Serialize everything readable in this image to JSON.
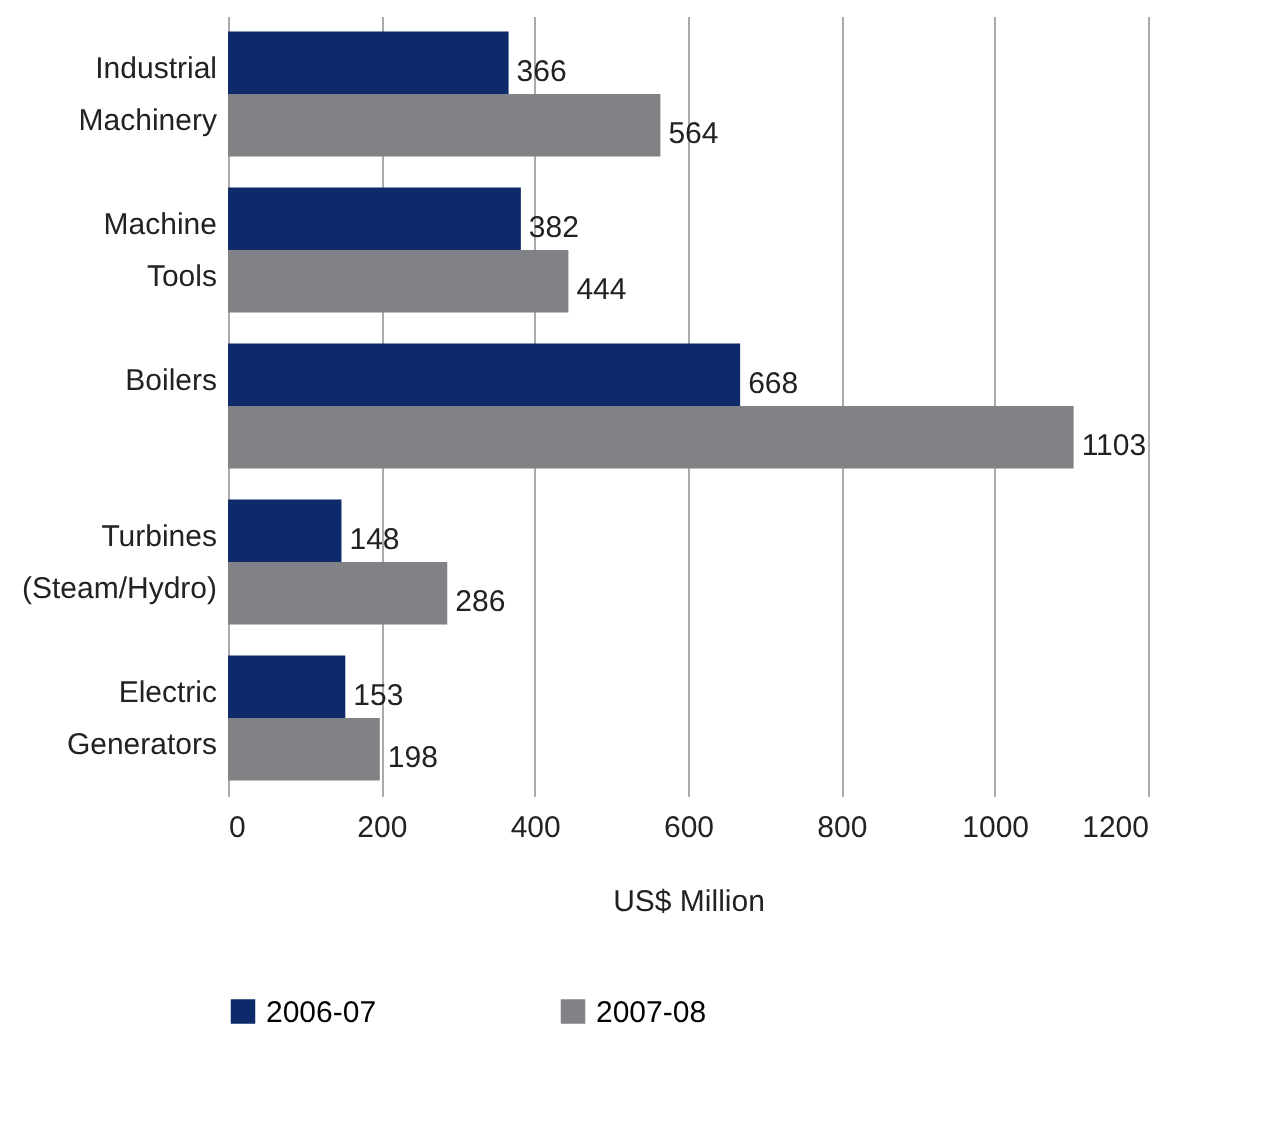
{
  "chart_data": {
    "type": "bar",
    "orientation": "horizontal",
    "xlabel": "US$ Million",
    "categories": [
      "Industrial Machinery",
      "Machine Tools",
      "Boilers",
      "Turbines (Steam/Hydro)",
      "Electric Generators"
    ],
    "series": [
      {
        "name": "2006-07",
        "color": "#0d2b6b",
        "values": [
          366,
          382,
          668,
          148,
          153
        ]
      },
      {
        "name": "2007-08",
        "color": "#808285",
        "values": [
          564,
          444,
          1103,
          286,
          198
        ]
      }
    ],
    "xlim": [
      0,
      1200
    ],
    "xticks": [
      0,
      200,
      400,
      600,
      800,
      1000,
      1200
    ],
    "grid": "x",
    "legend": "bottom",
    "data_labels": true
  }
}
